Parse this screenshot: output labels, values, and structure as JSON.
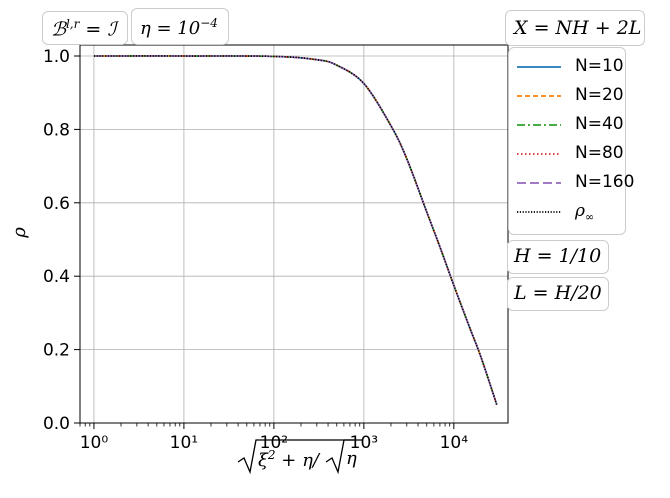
{
  "chart_data": {
    "type": "line",
    "title": "",
    "xlabel": "√ξ² + η/√η",
    "ylabel": "ρ",
    "x_scale": "log",
    "xlim": [
      0.7,
      40000
    ],
    "ylim": [
      0.0,
      1.03
    ],
    "grid": true,
    "x_ticks": [
      "10⁰",
      "10¹",
      "10²",
      "10³",
      "10⁴"
    ],
    "y_ticks": [
      "0.0",
      "0.2",
      "0.4",
      "0.6",
      "0.8",
      "1.0"
    ],
    "x": [
      1,
      10,
      100,
      300,
      500,
      1000,
      2000,
      3000,
      5000,
      7000,
      10000,
      15000,
      20000,
      30000
    ],
    "series": [
      {
        "name": "N=10",
        "color": "#1f77b4",
        "style": "solid",
        "values": [
          1.0,
          1.0,
          0.999,
          0.99,
          0.975,
          0.925,
          0.81,
          0.72,
          0.575,
          0.48,
          0.375,
          0.26,
          0.18,
          0.05
        ]
      },
      {
        "name": "N=20",
        "color": "#ff7f0e",
        "style": "dashed",
        "values": [
          1.0,
          1.0,
          0.999,
          0.99,
          0.975,
          0.925,
          0.81,
          0.72,
          0.575,
          0.48,
          0.375,
          0.26,
          0.18,
          0.05
        ]
      },
      {
        "name": "N=40",
        "color": "#2ca02c",
        "style": "dashdot",
        "values": [
          1.0,
          1.0,
          0.999,
          0.99,
          0.975,
          0.925,
          0.81,
          0.72,
          0.575,
          0.48,
          0.375,
          0.26,
          0.18,
          0.05
        ]
      },
      {
        "name": "N=80",
        "color": "#d62728",
        "style": "dotted",
        "values": [
          1.0,
          1.0,
          0.999,
          0.99,
          0.975,
          0.925,
          0.81,
          0.72,
          0.575,
          0.48,
          0.375,
          0.26,
          0.18,
          0.05
        ]
      },
      {
        "name": "N=160",
        "color": "#9467bd",
        "style": "longdash",
        "values": [
          1.0,
          1.0,
          0.999,
          0.99,
          0.975,
          0.925,
          0.81,
          0.72,
          0.575,
          0.48,
          0.375,
          0.26,
          0.18,
          0.05
        ]
      },
      {
        "name": "ρ∞",
        "color": "#000000",
        "style": "densedot",
        "values": [
          1.0,
          1.0,
          0.999,
          0.99,
          0.975,
          0.925,
          0.81,
          0.72,
          0.575,
          0.48,
          0.375,
          0.26,
          0.18,
          0.05
        ]
      }
    ],
    "legend_title": "X = NH + 2L",
    "legend_position": "right",
    "annotations": [
      "ℬ^{l,r} = ℐ",
      "η = 10⁻⁴",
      "H = 1/10",
      "L = H/20"
    ]
  },
  "labels": {
    "bc": "ℬ",
    "bc_sup": "l,r",
    "bc_rhs": " = ℐ",
    "eta": "η = 10",
    "eta_sup": "−4",
    "X": "X = NH + 2L",
    "H": "H = 1/10",
    "L": "L = H/20",
    "ylabel": "ρ",
    "rho_inf": "ρ",
    "rho_inf_sub": "∞"
  }
}
